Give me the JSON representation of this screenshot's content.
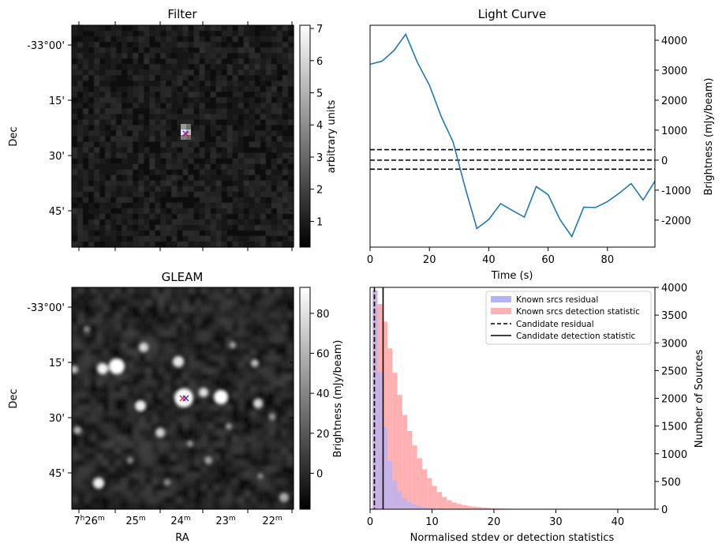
{
  "panels": {
    "filter": {
      "title": "Filter",
      "ylabel": "Dec",
      "yticks": [
        "-33°00'",
        "15'",
        "30'",
        "45'"
      ],
      "colorbar": {
        "label": "arbitrary units",
        "ticks": [
          "1",
          "2",
          "3",
          "4",
          "5",
          "6",
          "7"
        ],
        "range": [
          0.2,
          7.1
        ]
      }
    },
    "gleam": {
      "title": "GLEAM",
      "xlabel": "RA",
      "ylabel": "Dec",
      "yticks": [
        "-33°00'",
        "15'",
        "30'",
        "45'"
      ],
      "xticks": [
        {
          "h": "7",
          "hs": "h",
          "m": "26",
          "ms": "m"
        },
        {
          "m": "25",
          "ms": "m"
        },
        {
          "m": "24",
          "ms": "m"
        },
        {
          "m": "23",
          "ms": "m"
        },
        {
          "m": "22",
          "ms": "m"
        }
      ],
      "colorbar": {
        "label": "Brightness (mJy/beam)",
        "ticks": [
          "0",
          "20",
          "40",
          "60",
          "80"
        ],
        "range": [
          -18,
          93
        ]
      }
    }
  },
  "chart_data": [
    {
      "type": "line",
      "title": "Light Curve",
      "xlabel": "Time (s)",
      "ylabel": "Brightness (mJy/beam)",
      "xlim": [
        0,
        96
      ],
      "ylim": [
        -2900,
        4500
      ],
      "xticks": [
        "0",
        "20",
        "40",
        "60",
        "80"
      ],
      "yticks": [
        "-2000",
        "-1000",
        "0",
        "1000",
        "2000",
        "3000",
        "4000"
      ],
      "series": [
        {
          "color": "#1f77b4",
          "x": [
            0,
            4,
            8,
            12,
            16,
            20,
            24,
            28,
            32,
            36,
            40,
            44,
            48,
            52,
            56,
            60,
            64,
            68,
            72,
            76,
            80,
            84,
            88,
            92,
            96
          ],
          "y": [
            3200,
            3300,
            3650,
            4200,
            3250,
            2500,
            1450,
            600,
            -900,
            -2280,
            -1980,
            -1450,
            -1680,
            -1900,
            -880,
            -1150,
            -1980,
            -2550,
            -1570,
            -1580,
            -1380,
            -1100,
            -780,
            -1330,
            -700
          ]
        }
      ],
      "hlines": [
        {
          "y": 350,
          "style": "dashed",
          "color": "#000000"
        },
        {
          "y": 0,
          "style": "dashed",
          "color": "#000000"
        },
        {
          "y": -300,
          "style": "dashed",
          "color": "#000000"
        }
      ]
    },
    {
      "type": "bar",
      "xlabel": "Normalised stdev or detection statistics",
      "ylabel": "Number of Sources",
      "xlim": [
        0,
        46
      ],
      "ylim": [
        0,
        4000
      ],
      "xticks": [
        "0",
        "10",
        "20",
        "30",
        "40"
      ],
      "yticks": [
        "0",
        "500",
        "1000",
        "1500",
        "2000",
        "2500",
        "3000",
        "3500",
        "4000"
      ],
      "legend_position": "top-right",
      "bin_width": 0.8,
      "series": [
        {
          "name": "Known srcs residual",
          "color": "#b3b3f7",
          "bin_start": 0.4,
          "counts": [
            3950,
            2470,
            1480,
            870,
            520,
            320,
            200,
            130,
            85,
            55,
            35,
            22,
            14,
            9,
            6
          ]
        },
        {
          "name": "Known srcs detection statistic",
          "color": "#ffb0b0",
          "bin_start": 0.4,
          "counts": [
            3950,
            3700,
            3380,
            2900,
            2460,
            2060,
            1700,
            1410,
            1150,
            920,
            720,
            560,
            420,
            310,
            220,
            160,
            120,
            95,
            75,
            60,
            48,
            38,
            30,
            24,
            19,
            15,
            12,
            10,
            8,
            7,
            6,
            5,
            4,
            3,
            3,
            2,
            2,
            2,
            2,
            1,
            1,
            1,
            1,
            1,
            1,
            1,
            1,
            1,
            1,
            1,
            1,
            1,
            1,
            1,
            1,
            1
          ]
        }
      ],
      "vlines": [
        {
          "name": "Candidate residual",
          "x": 0.7,
          "style": "dashed",
          "color": "#000000"
        },
        {
          "name": "Candidate detection statistic",
          "x": 2.1,
          "style": "solid",
          "color": "#000000"
        }
      ]
    }
  ]
}
